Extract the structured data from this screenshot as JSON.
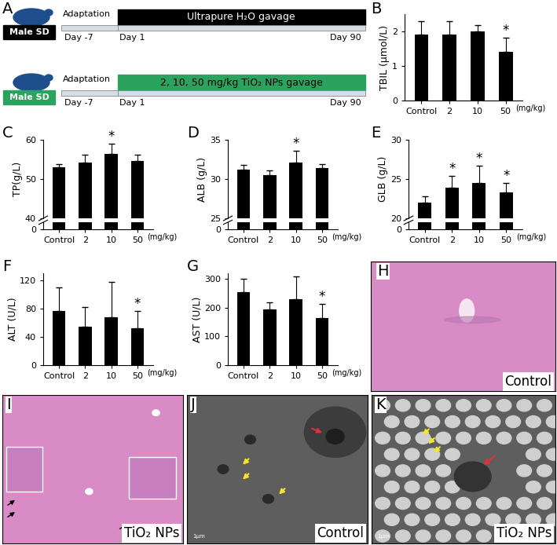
{
  "schematic": {
    "panel": "A",
    "rows": [
      {
        "animal": "Male SD",
        "adaptation": "Adaptation",
        "treatment": "Ultrapure H₂O gavage",
        "days": [
          "Day -7",
          "Day 1",
          "Day 90"
        ],
        "color": "#000000"
      },
      {
        "animal": "Male SD",
        "adaptation": "Adaptation",
        "treatment": "2, 10, 50 mg/kg TiO₂ NPs gavage",
        "days": [
          "Day -7",
          "Day 1",
          "Day 90"
        ],
        "color": "#2ca25f"
      }
    ]
  },
  "chart_data": [
    {
      "panel": "B",
      "type": "bar",
      "categories": [
        "Control",
        "2",
        "10",
        "50"
      ],
      "unit_label": "(mg/kg)",
      "y_label": "TBIL (μmol/L)",
      "values": [
        1.9,
        1.9,
        2.0,
        1.4
      ],
      "errors": [
        0.4,
        0.4,
        0.18,
        0.42
      ],
      "significance": [
        null,
        null,
        null,
        "*"
      ],
      "color": "#000000",
      "ylim": [
        0,
        2.5
      ],
      "yticks": [
        0,
        1,
        2
      ]
    },
    {
      "panel": "C",
      "type": "bar",
      "categories": [
        "Control",
        "2",
        "10",
        "50"
      ],
      "unit_label": "(mg/kg)",
      "y_label": "TP(g/L)",
      "values": [
        53.0,
        54.3,
        56.4,
        54.6
      ],
      "errors": [
        0.8,
        2.0,
        2.6,
        1.6
      ],
      "significance": [
        null,
        null,
        "*",
        null
      ],
      "color": "#000000",
      "ylim": [
        40,
        60
      ],
      "yticks": [
        40,
        50,
        60
      ],
      "lower_ylim": [
        0,
        5
      ],
      "lower_yticks": [
        0
      ]
    },
    {
      "panel": "D",
      "type": "bar",
      "categories": [
        "Control",
        "2",
        "10",
        "50"
      ],
      "unit_label": "(mg/kg)",
      "y_label": "ALB (g/L)",
      "values": [
        31.2,
        30.5,
        32.1,
        31.4
      ],
      "errors": [
        0.6,
        0.6,
        1.5,
        0.5
      ],
      "significance": [
        null,
        null,
        "*",
        null
      ],
      "color": "#000000",
      "ylim": [
        25,
        35
      ],
      "yticks": [
        25,
        30,
        35
      ],
      "lower_ylim": [
        0,
        5
      ],
      "lower_yticks": [
        0
      ]
    },
    {
      "panel": "E",
      "type": "bar",
      "categories": [
        "Control",
        "2",
        "10",
        "50"
      ],
      "unit_label": "(mg/kg)",
      "y_label": "GLB (g/L)",
      "values": [
        22.0,
        23.9,
        24.5,
        23.3
      ],
      "errors": [
        0.8,
        1.5,
        2.2,
        1.2
      ],
      "significance": [
        null,
        "*",
        "*",
        "*"
      ],
      "color": "#000000",
      "ylim": [
        20,
        30
      ],
      "yticks": [
        20,
        25,
        30
      ],
      "lower_ylim": [
        0,
        5
      ],
      "lower_yticks": [
        0
      ]
    },
    {
      "panel": "F",
      "type": "bar",
      "categories": [
        "Control",
        "2",
        "10",
        "50"
      ],
      "unit_label": "(mg/kg)",
      "y_label": "ALT (U/L)",
      "values": [
        77,
        55,
        68,
        52
      ],
      "errors": [
        33,
        27,
        50,
        25
      ],
      "significance": [
        null,
        null,
        null,
        "*"
      ],
      "color": "#000000",
      "ylim": [
        0,
        130
      ],
      "yticks": [
        0,
        40,
        80,
        120
      ]
    },
    {
      "panel": "G",
      "type": "bar",
      "categories": [
        "Control",
        "2",
        "10",
        "50"
      ],
      "unit_label": "(mg/kg)",
      "y_label": "AST (U/L)",
      "values": [
        253,
        193,
        230,
        165
      ],
      "errors": [
        47,
        25,
        80,
        48
      ],
      "significance": [
        null,
        null,
        null,
        "*"
      ],
      "color": "#000000",
      "ylim": [
        0,
        320
      ],
      "yticks": [
        0,
        100,
        200,
        300
      ]
    }
  ],
  "images": [
    {
      "panel": "H",
      "caption": "Control",
      "kind": "light"
    },
    {
      "panel": "I",
      "caption": "TiO₂ NPs",
      "kind": "light"
    },
    {
      "panel": "J",
      "caption": "Control",
      "kind": "em",
      "scale": "1μm"
    },
    {
      "panel": "K",
      "caption": "TiO₂ NPs",
      "kind": "em",
      "scale": "1μm"
    }
  ]
}
